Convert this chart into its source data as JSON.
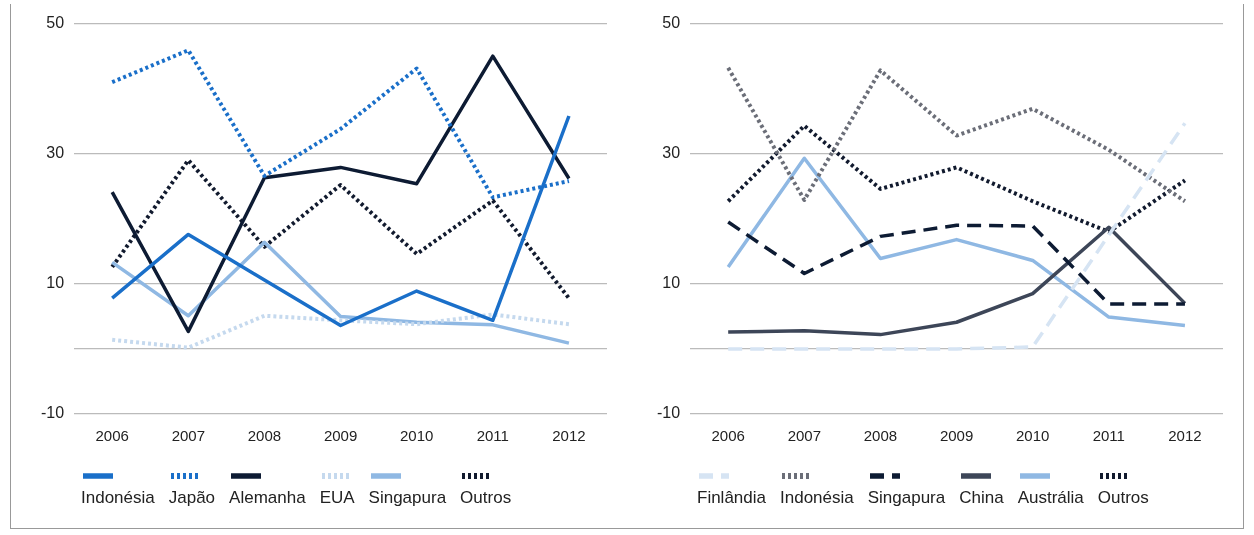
{
  "chart_data": [
    {
      "type": "line",
      "categories": [
        "2006",
        "2007",
        "2008",
        "2009",
        "2010",
        "2011",
        "2012"
      ],
      "ylim": [
        -10,
        50
      ],
      "yticks": [
        -10,
        {
          "value": 0,
          "label": null
        },
        10,
        30,
        50
      ],
      "grid": "y",
      "legend": "bottom",
      "marker": "none",
      "series": [
        {
          "name": "Indonésia",
          "color": "#1a6fc9",
          "line_style": "solid",
          "values": [
            7.8,
            17.6,
            10.6,
            3.6,
            8.9,
            4.4,
            35.8
          ]
        },
        {
          "name": "Japão",
          "color": "#1a6fc9",
          "line_style": "dotted",
          "values": [
            41,
            45.9,
            26.6,
            33.8,
            43.1,
            23.3,
            25.8
          ]
        },
        {
          "name": "Alemanha",
          "color": "#0d1b33",
          "line_style": "solid",
          "values": [
            24.1,
            2.7,
            26.3,
            27.9,
            25.4,
            45,
            26.2
          ]
        },
        {
          "name": "EUA",
          "color": "#c5d9ee",
          "line_style": "dotted",
          "values": [
            1.4,
            0.2,
            5.1,
            4.4,
            3.8,
            5.3,
            3.8
          ]
        },
        {
          "name": "Singapura",
          "color": "#8fb8e3",
          "line_style": "solid",
          "values": [
            13.3,
            5.1,
            16.4,
            5,
            4.1,
            3.7,
            0.9
          ]
        },
        {
          "name": "Outros",
          "color": "#111a2e",
          "line_style": "dotted",
          "values": [
            12.6,
            29,
            15.7,
            25.2,
            14.6,
            22.8,
            7.8
          ]
        }
      ]
    },
    {
      "type": "line",
      "categories": [
        "2006",
        "2007",
        "2008",
        "2009",
        "2010",
        "2011",
        "2012"
      ],
      "ylim": [
        -10,
        50
      ],
      "yticks": [
        -10,
        {
          "value": 0,
          "label": null
        },
        10,
        30,
        50
      ],
      "grid": "y",
      "legend": "bottom",
      "marker": "none",
      "series": [
        {
          "name": "Finlândia",
          "color": "#d6e4f3",
          "line_style": "dashed",
          "values": [
            0,
            0,
            0,
            0,
            0.3,
            17.5,
            34.7
          ]
        },
        {
          "name": "Indonésia",
          "color": "#6b6e78",
          "line_style": "dotted",
          "values": [
            43.2,
            22.9,
            42.8,
            32.8,
            36.9,
            30.6,
            22.7
          ]
        },
        {
          "name": "Singapura",
          "color": "#0d1b33",
          "line_style": "dashed",
          "values": [
            19.5,
            11.6,
            17.3,
            19,
            18.9,
            6.9,
            6.9
          ]
        },
        {
          "name": "China",
          "color": "#3d4658",
          "line_style": "solid",
          "values": [
            2.6,
            2.8,
            2.2,
            4.1,
            8.5,
            18.7,
            7
          ]
        },
        {
          "name": "Austrália",
          "color": "#8fb8e3",
          "line_style": "solid",
          "values": [
            12.6,
            29.3,
            13.9,
            16.8,
            13.6,
            4.9,
            3.6
          ]
        },
        {
          "name": "Outros",
          "color": "#111a2e",
          "line_style": "dotted",
          "values": [
            22.7,
            34.3,
            24.6,
            27.9,
            22.7,
            18,
            25.9
          ]
        }
      ]
    }
  ]
}
